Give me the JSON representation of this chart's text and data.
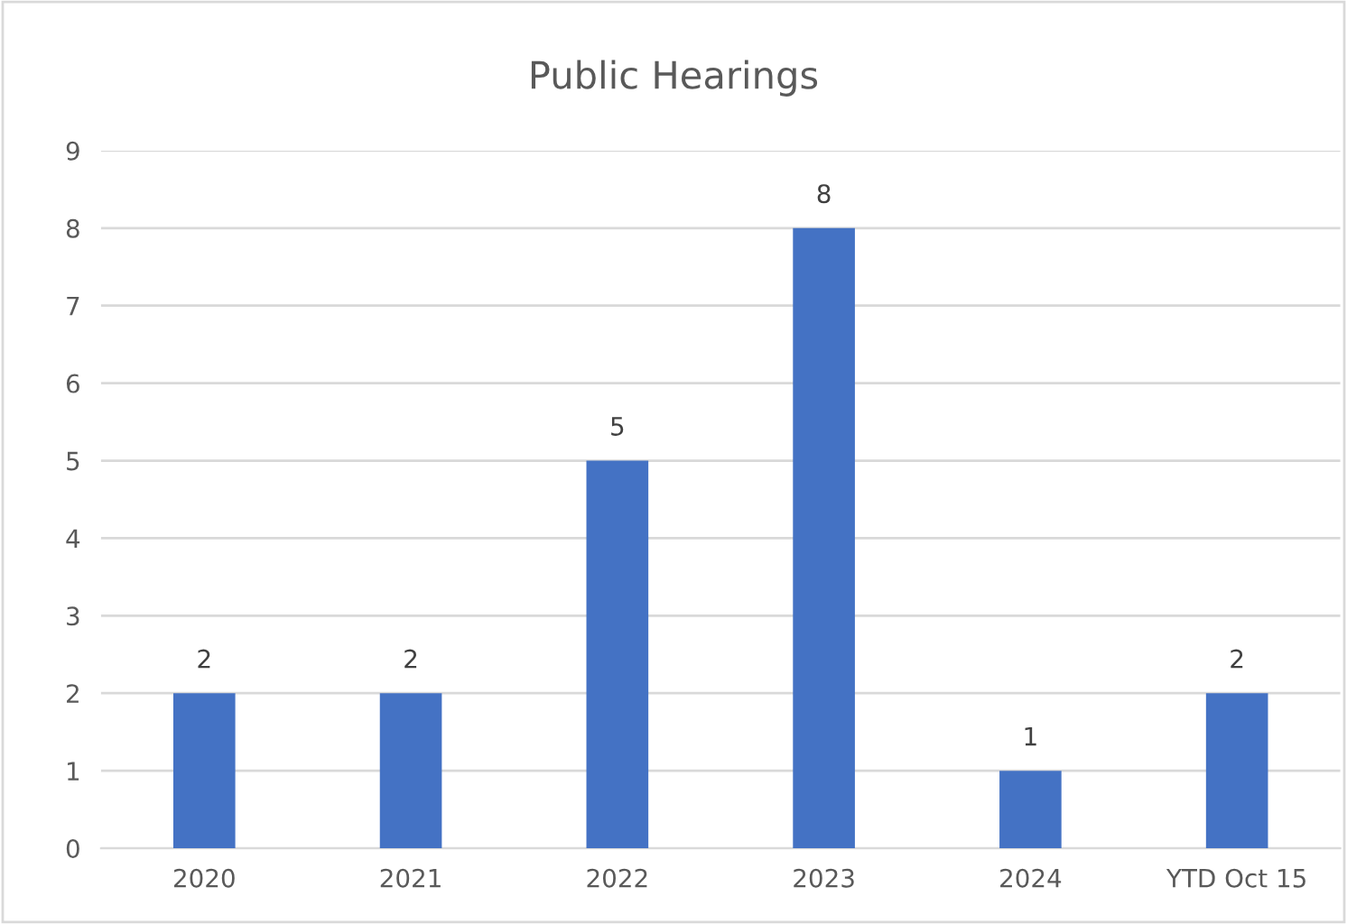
{
  "chart_data": {
    "type": "bar",
    "title": "Public Hearings",
    "categories": [
      "2020",
      "2021",
      "2022",
      "2023",
      "2024",
      "YTD Oct 15"
    ],
    "values": [
      2,
      2,
      5,
      8,
      1,
      2
    ],
    "color": "#4472c4",
    "ylim": [
      0,
      9
    ],
    "yticks": [
      0,
      1,
      2,
      3,
      4,
      5,
      6,
      7,
      8,
      9
    ],
    "grid": "y",
    "data_labels": true
  }
}
